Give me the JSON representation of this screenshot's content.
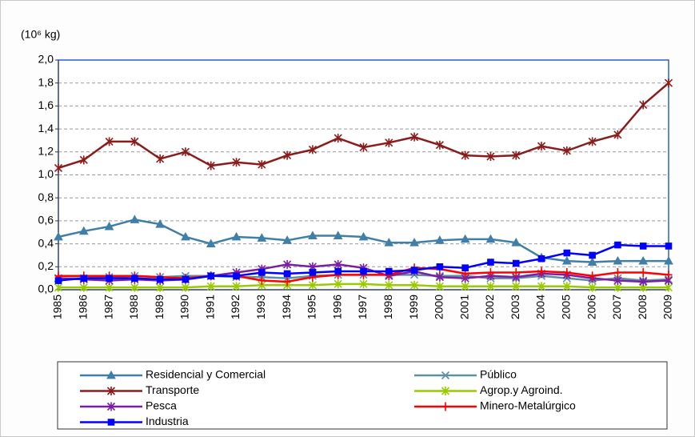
{
  "chart_data": {
    "type": "line",
    "y_label": "(10⁶ kg)",
    "categories": [
      "1985",
      "1986",
      "1987",
      "1988",
      "1989",
      "1990",
      "1991",
      "1992",
      "1993",
      "1994",
      "1995",
      "1996",
      "1997",
      "1998",
      "1999",
      "2000",
      "2001",
      "2002",
      "2003",
      "2004",
      "2005",
      "2006",
      "2007",
      "2008",
      "2009"
    ],
    "ylim": [
      0,
      2.0
    ],
    "yticks": [
      {
        "value": 0,
        "label": "0,0"
      },
      {
        "value": 0.2,
        "label": "0,2"
      },
      {
        "value": 0.4,
        "label": "0,4"
      },
      {
        "value": 0.6,
        "label": "0,6"
      },
      {
        "value": 0.8,
        "label": "0,8"
      },
      {
        "value": 1.0,
        "label": "1,0"
      },
      {
        "value": 1.2,
        "label": "1,2"
      },
      {
        "value": 1.4,
        "label": "1,4"
      },
      {
        "value": 1.6,
        "label": "1,6"
      },
      {
        "value": 1.8,
        "label": "1,8"
      },
      {
        "value": 2.0,
        "label": "2,0"
      }
    ],
    "grid": true,
    "legend": "bottom",
    "series": [
      {
        "name": "Residencial y Comercial",
        "color": "#3f7fa8",
        "marker": "triangle",
        "values": [
          0.46,
          0.51,
          0.55,
          0.61,
          0.57,
          0.46,
          0.4,
          0.46,
          0.45,
          0.43,
          0.47,
          0.47,
          0.46,
          0.41,
          0.41,
          0.43,
          0.44,
          0.44,
          0.41,
          0.28,
          0.25,
          0.24,
          0.25,
          0.25,
          0.25
        ]
      },
      {
        "name": "Público",
        "color": "#5e8fa3",
        "marker": "x",
        "values": [
          0.1,
          0.1,
          0.11,
          0.12,
          0.11,
          0.12,
          0.12,
          0.11,
          0.11,
          0.1,
          0.12,
          0.13,
          0.13,
          0.13,
          0.13,
          0.12,
          0.12,
          0.1,
          0.1,
          0.12,
          0.1,
          0.08,
          0.1,
          0.08,
          0.09
        ]
      },
      {
        "name": "Transporte",
        "color": "#8b1c1c",
        "marker": "asterisk",
        "values": [
          1.06,
          1.13,
          1.29,
          1.29,
          1.14,
          1.2,
          1.08,
          1.11,
          1.09,
          1.17,
          1.22,
          1.32,
          1.24,
          1.28,
          1.33,
          1.26,
          1.17,
          1.16,
          1.17,
          1.25,
          1.21,
          1.29,
          1.35,
          1.61,
          1.8
        ]
      },
      {
        "name": "Agrop.y Agroind.",
        "color": "#99cc00",
        "marker": "asterisk",
        "values": [
          0.02,
          0.02,
          0.02,
          0.02,
          0.02,
          0.02,
          0.03,
          0.03,
          0.04,
          0.04,
          0.04,
          0.05,
          0.05,
          0.04,
          0.04,
          0.03,
          0.03,
          0.03,
          0.03,
          0.03,
          0.03,
          0.02,
          0.02,
          0.02,
          0.02
        ]
      },
      {
        "name": "Pesca",
        "color": "#7b1fa2",
        "marker": "asterisk",
        "values": [
          0.1,
          0.09,
          0.08,
          0.09,
          0.08,
          0.09,
          0.12,
          0.15,
          0.18,
          0.22,
          0.2,
          0.22,
          0.19,
          0.12,
          0.16,
          0.11,
          0.1,
          0.12,
          0.11,
          0.14,
          0.13,
          0.1,
          0.08,
          0.07,
          0.08
        ]
      },
      {
        "name": "Minero-Metalúrgico",
        "color": "#ff0000",
        "marker": "plus",
        "values": [
          0.12,
          0.12,
          0.12,
          0.12,
          0.11,
          0.1,
          0.12,
          0.12,
          0.08,
          0.07,
          0.11,
          0.13,
          0.13,
          0.13,
          0.19,
          0.18,
          0.14,
          0.15,
          0.15,
          0.16,
          0.15,
          0.12,
          0.15,
          0.15,
          0.13
        ]
      },
      {
        "name": "Industria",
        "color": "#0000ff",
        "marker": "square",
        "values": [
          0.08,
          0.1,
          0.1,
          0.1,
          0.09,
          0.09,
          0.12,
          0.12,
          0.15,
          0.14,
          0.15,
          0.16,
          0.16,
          0.16,
          0.17,
          0.2,
          0.19,
          0.24,
          0.23,
          0.27,
          0.32,
          0.3,
          0.39,
          0.38,
          0.38
        ]
      }
    ]
  }
}
